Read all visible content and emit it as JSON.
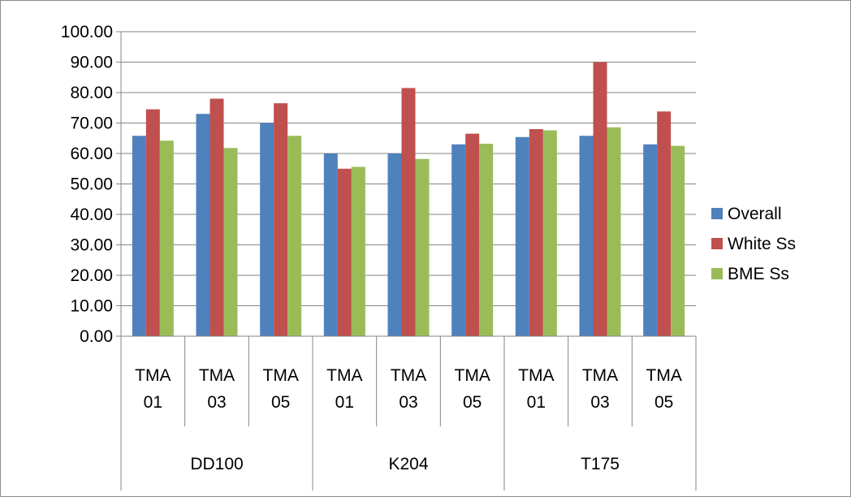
{
  "chart_data": {
    "type": "bar",
    "title": "",
    "xlabel": "",
    "ylabel": "",
    "ylim": [
      0,
      100
    ],
    "ytick_step": 10,
    "ytick_labels": [
      "0.00",
      "10.00",
      "20.00",
      "30.00",
      "40.00",
      "50.00",
      "60.00",
      "70.00",
      "80.00",
      "90.00",
      "100.00"
    ],
    "grid": true,
    "legend_position": "right",
    "categories": [
      {
        "lines": [
          "TMA",
          "01"
        ]
      },
      {
        "lines": [
          "TMA",
          "03"
        ]
      },
      {
        "lines": [
          "TMA",
          "05"
        ]
      },
      {
        "lines": [
          "TMA",
          "01"
        ]
      },
      {
        "lines": [
          "TMA",
          "03"
        ]
      },
      {
        "lines": [
          "TMA",
          "05"
        ]
      },
      {
        "lines": [
          "TMA",
          "01"
        ]
      },
      {
        "lines": [
          "TMA",
          "03"
        ]
      },
      {
        "lines": [
          "TMA",
          "05"
        ]
      }
    ],
    "groups": [
      {
        "label": "DD100",
        "span": 3
      },
      {
        "label": "K204",
        "span": 3
      },
      {
        "label": "T175",
        "span": 3
      }
    ],
    "series": [
      {
        "name": "Overall",
        "color": "#4f81bd",
        "values": [
          65.8,
          73.0,
          70.0,
          60.0,
          60.0,
          63.0,
          65.4,
          65.8,
          63.0
        ]
      },
      {
        "name": "White Ss",
        "color": "#c0504d",
        "values": [
          74.5,
          78.0,
          76.5,
          55.0,
          81.5,
          66.5,
          68.0,
          90.0,
          73.8
        ]
      },
      {
        "name": "BME Ss",
        "color": "#9bbb59",
        "values": [
          64.2,
          61.8,
          65.8,
          55.6,
          58.2,
          63.2,
          67.6,
          68.6,
          62.5
        ]
      }
    ]
  }
}
